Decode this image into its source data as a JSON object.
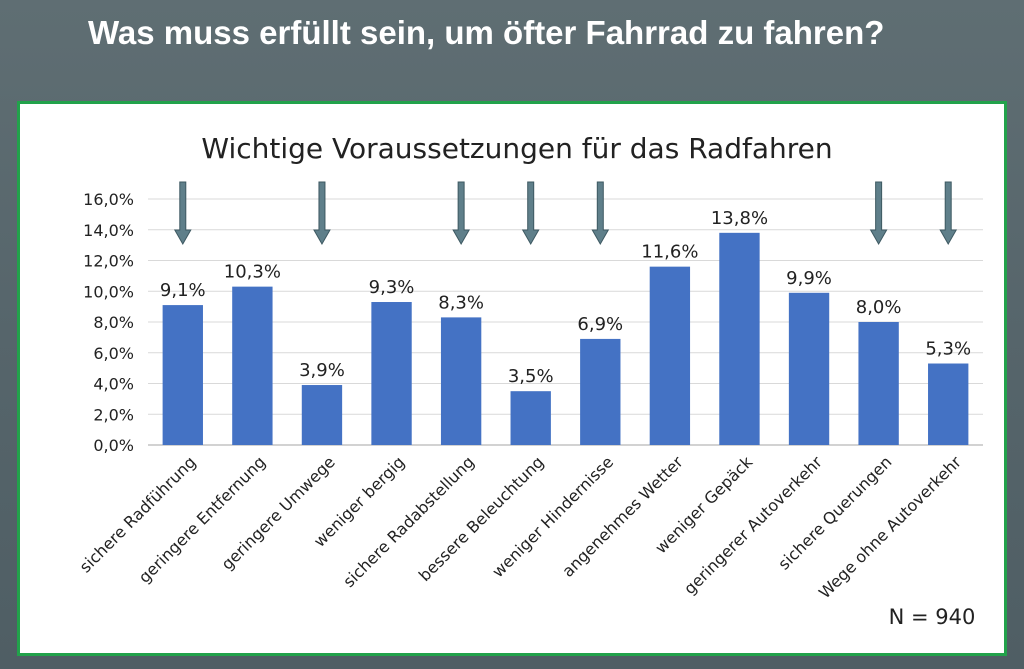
{
  "slide": {
    "title": "Was muss erfüllt sein, um öfter Fahrrad zu fahren?"
  },
  "chart_data": {
    "type": "bar",
    "title": "Wichtige Voraussetzungen  für das Radfahren",
    "xlabel": "",
    "ylabel": "",
    "ylim": [
      0,
      16
    ],
    "y_ticks": [
      "0,0%",
      "2,0%",
      "4,0%",
      "6,0%",
      "8,0%",
      "10,0%",
      "12,0%",
      "14,0%",
      "16,0%"
    ],
    "grid": true,
    "categories": [
      "sichere Radführung",
      "geringere Entfernung",
      "geringere Umwege",
      "weniger bergig",
      "sichere Radabstellung",
      "bessere Beleuchtung",
      "weniger Hindernisse",
      "angenehmes Wetter",
      "weniger Gepäck",
      "geringerer Autoverkehr",
      "sichere Querungen",
      "Wege ohne Autoverkehr"
    ],
    "values": [
      9.1,
      10.3,
      3.9,
      9.3,
      8.3,
      3.5,
      6.9,
      11.6,
      13.8,
      9.9,
      8.0,
      5.3
    ],
    "data_labels": [
      "9,1%",
      "10,3%",
      "3,9%",
      "9,3%",
      "8,3%",
      "3,5%",
      "6,9%",
      "11,6%",
      "13,8%",
      "9,9%",
      "8,0%",
      "5,3%"
    ],
    "arrow_marked": [
      true,
      false,
      true,
      false,
      true,
      true,
      true,
      false,
      false,
      false,
      true,
      true
    ],
    "annotation": "N = 940",
    "colors": {
      "bar": "#4472c4",
      "arrow": "#5f7f8a",
      "grid": "#d9d9d9",
      "frame": "#22a24b"
    }
  }
}
